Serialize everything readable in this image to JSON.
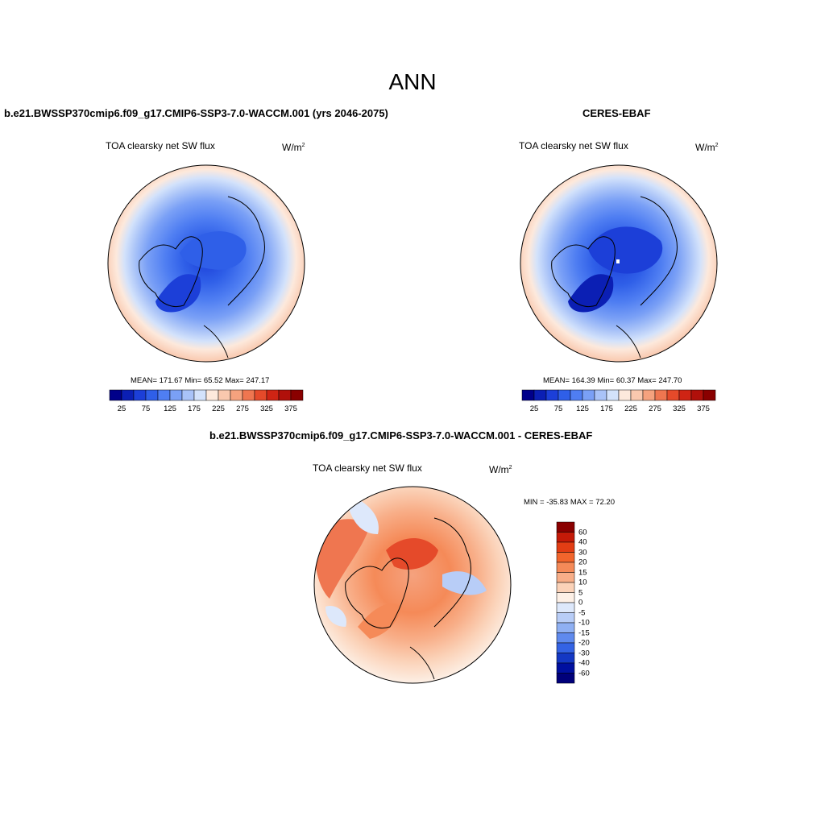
{
  "title": "ANN",
  "panels": {
    "model": {
      "title": "b.e21.BWSSP370cmip6.f09_g17.CMIP6-SSP3-7.0-WACCM.001 (yrs 2046-2075)",
      "variable": "TOA clearsky net SW flux",
      "units": "W/m",
      "units_sup": "2",
      "stats": "MEAN= 171.67  Min=  65.52  Max= 247.17",
      "mean": 171.67,
      "min": 65.52,
      "max": 247.17
    },
    "obs": {
      "title": "CERES-EBAF",
      "variable": "TOA clearsky net SW flux",
      "units": "W/m",
      "units_sup": "2",
      "stats": "MEAN= 164.39  Min=  60.37  Max= 247.70",
      "mean": 164.39,
      "min": 60.37,
      "max": 247.7
    },
    "diff": {
      "title": "b.e21.BWSSP370cmip6.f09_g17.CMIP6-SSP3-7.0-WACCM.001 - CERES-EBAF",
      "variable": "TOA clearsky net SW flux",
      "units": "W/m",
      "units_sup": "2",
      "stats": "MIN = -35.83 MAX =  72.20",
      "min": -35.83,
      "max": 72.2
    }
  },
  "colorbar_abs": {
    "tick_labels": [
      "25",
      "75",
      "125",
      "175",
      "225",
      "275",
      "325",
      "375"
    ],
    "colors": [
      "#00008a",
      "#0b1fb4",
      "#1c3fd8",
      "#2f5fe8",
      "#4f7ef2",
      "#7aa0f6",
      "#a9c3f8",
      "#d3e2fb",
      "#fde9dc",
      "#f9c8ae",
      "#f5a27e",
      "#ef7650",
      "#e54a2a",
      "#cf2414",
      "#b0100a",
      "#8a0000"
    ]
  },
  "colorbar_diff": {
    "labels": [
      "60",
      "40",
      "30",
      "20",
      "15",
      "10",
      "5",
      "0",
      "-5",
      "-10",
      "-15",
      "-20",
      "-30",
      "-40",
      "-60"
    ],
    "colors": [
      "#8a0000",
      "#c41a08",
      "#e23d14",
      "#f2652c",
      "#f58a58",
      "#f8ae88",
      "#fbd2b8",
      "#fdf0e6",
      "#dde8fb",
      "#b8cdf7",
      "#8fb0f3",
      "#5f8aee",
      "#3463e4",
      "#1438c4",
      "#0010a0",
      "#00007a"
    ]
  },
  "map_fill": {
    "model": {
      "outer": "#f8d6c2",
      "ring2": "#fde9dc",
      "land": "#a9c3f8"
    },
    "obs": {
      "outer": "#f8d6c2",
      "ring2": "#fde9dc",
      "land": "#a9c3f8"
    },
    "diff": {
      "outer": "#fbd2b8",
      "ring2": "#f58a58",
      "land": "#ef7650"
    }
  }
}
